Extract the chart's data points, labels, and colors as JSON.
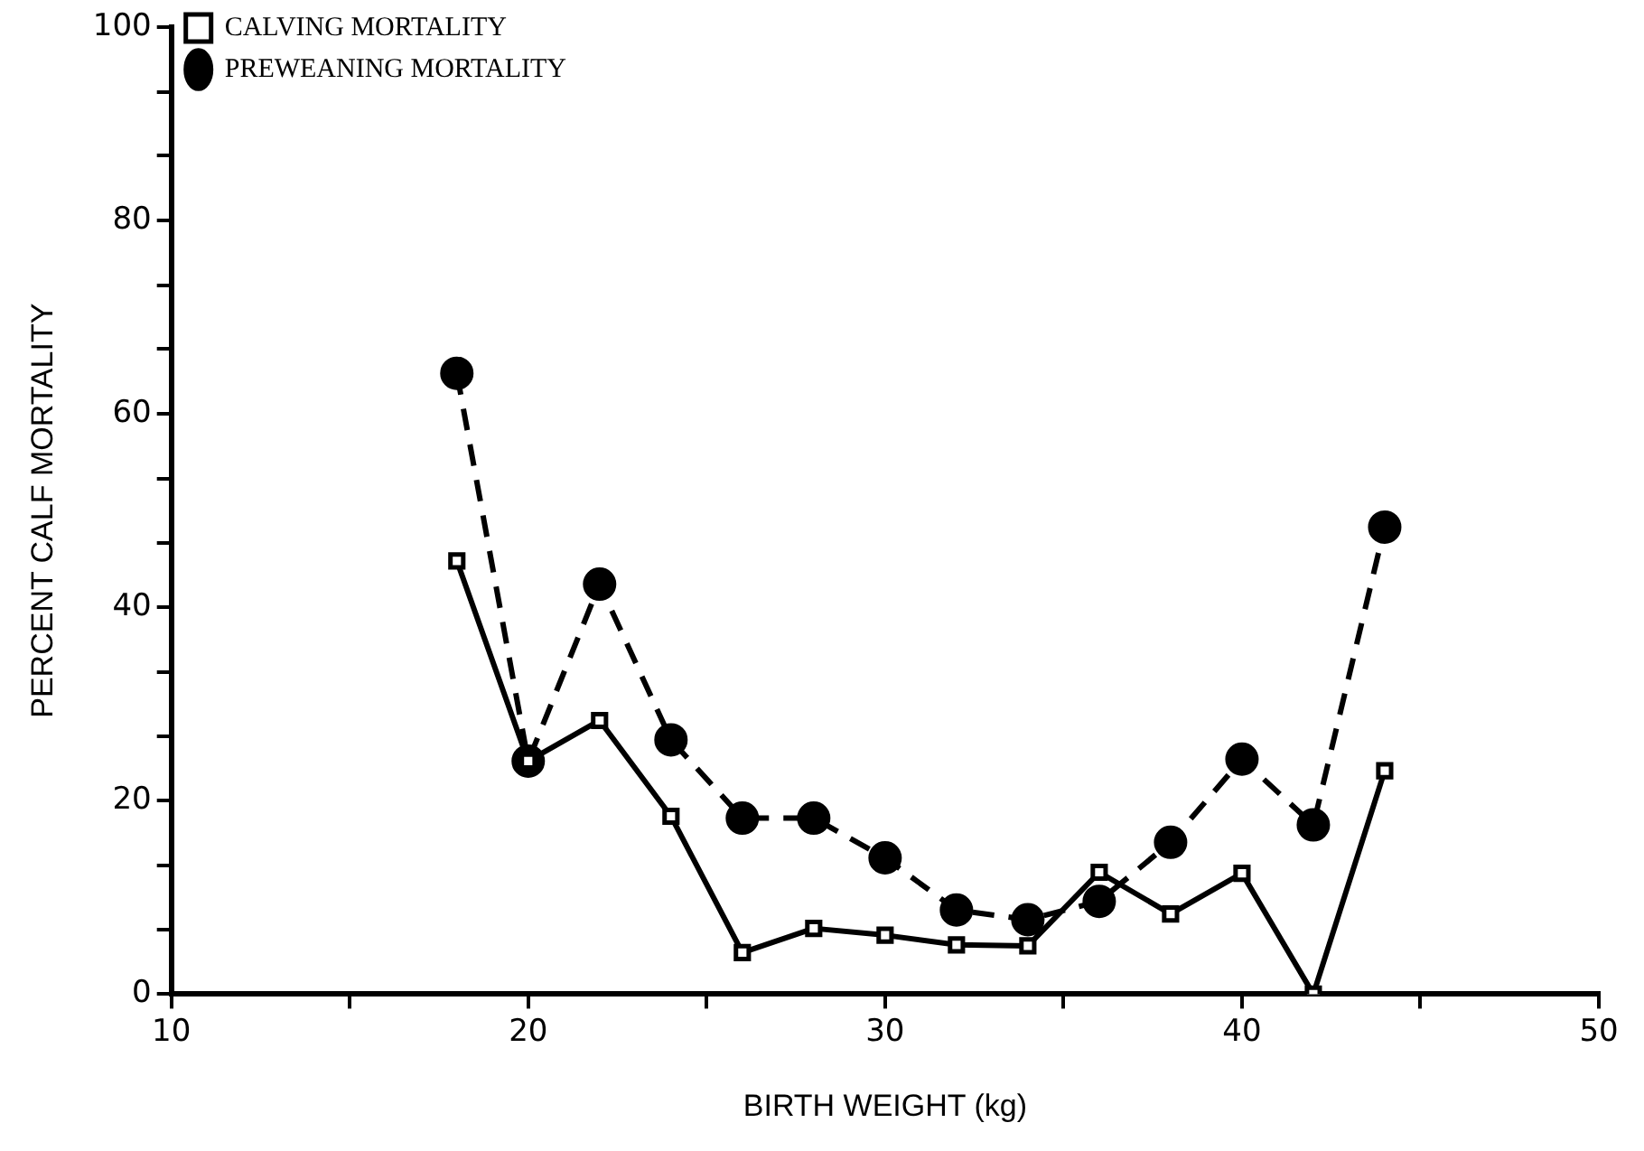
{
  "chart_data": {
    "type": "line",
    "xlabel": "BIRTH WEIGHT (kg)",
    "ylabel": "PERCENT CALF MORTALITY",
    "x": [
      18,
      20,
      22,
      24,
      26,
      28,
      30,
      32,
      34,
      36,
      38,
      40,
      42,
      44
    ],
    "series": [
      {
        "name": "CALVING MORTALITY",
        "color": "#000000",
        "marker": "square",
        "line_style": "solid",
        "values": [
          44.8,
          24.1,
          28.3,
          18.4,
          4.3,
          6.8,
          6.1,
          5.1,
          5.0,
          12.6,
          8.3,
          12.5,
          0,
          23.1
        ]
      },
      {
        "name": "PREWEANING MORTALITY",
        "color": "#000000",
        "marker": "circle",
        "line_style": "dashed",
        "values": [
          64.2,
          24.1,
          42.4,
          26.3,
          18.2,
          18.2,
          14.1,
          8.7,
          7.7,
          9.6,
          15.7,
          24.3,
          17.5,
          48.3
        ]
      }
    ],
    "xlim": [
      10,
      50
    ],
    "xticks": [
      10,
      {
        "value": 15,
        "label": null
      },
      20,
      {
        "value": 25,
        "label": null
      },
      30,
      {
        "value": 35,
        "label": null
      },
      40,
      {
        "value": 45,
        "label": null
      },
      50
    ],
    "ylim": [
      0,
      100
    ],
    "yticks": [
      0,
      {
        "value": 6.7,
        "label": null
      },
      {
        "value": 13.3,
        "label": null
      },
      20,
      {
        "value": 26.7,
        "label": null
      },
      {
        "value": 33.3,
        "label": null
      },
      40,
      {
        "value": 46.7,
        "label": null
      },
      {
        "value": 53.3,
        "label": null
      },
      60,
      {
        "value": 66.7,
        "label": null
      },
      {
        "value": 73.3,
        "label": null
      },
      80,
      {
        "value": 86.7,
        "label": null
      },
      {
        "value": 93.3,
        "label": null
      },
      100
    ],
    "grid": false,
    "legend": "top left"
  }
}
